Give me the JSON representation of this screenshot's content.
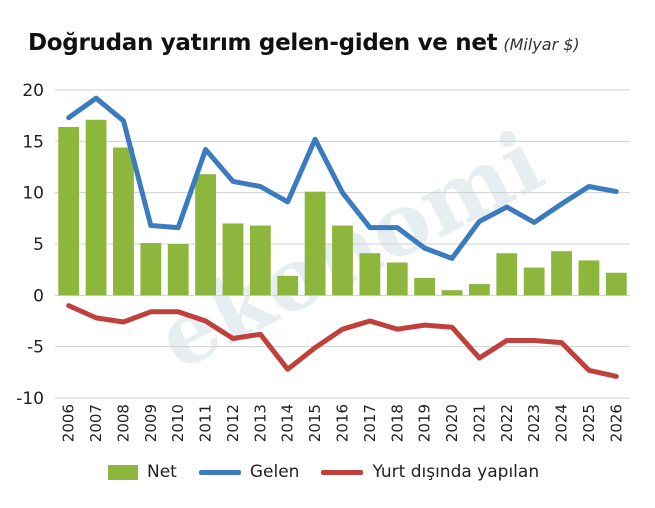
{
  "title": "Doğrudan yatırım gelen-giden ve net",
  "unit": "(Milyar $)",
  "watermark": "ekonomi",
  "colors": {
    "net": "#8db63d",
    "gelen": "#3b7bbf",
    "yurt": "#c0403c",
    "grid": "#d0d0d0"
  },
  "legend": {
    "net": "Net",
    "gelen": "Gelen",
    "yurt": "Yurt dışında yapılan"
  },
  "chart_data": {
    "type": "bar",
    "title": "Doğrudan yatırım gelen-giden ve net",
    "subtitle": "(Milyar $)",
    "categories": [
      "2006",
      "2007",
      "2008",
      "2009",
      "2010",
      "2011",
      "2012",
      "2013",
      "2014",
      "2015",
      "2016",
      "2017",
      "2018",
      "2019",
      "2020",
      "2021",
      "2022",
      "2023",
      "2024",
      "2025",
      "2026"
    ],
    "ylim": [
      -10,
      20
    ],
    "yticks": [
      20,
      15,
      10,
      5,
      0,
      -5,
      -10
    ],
    "grid": true,
    "legend_position": "bottom",
    "series": [
      {
        "name": "Net",
        "type": "bar",
        "values": [
          16.4,
          17.1,
          14.4,
          5.1,
          5.0,
          11.8,
          7.0,
          6.8,
          1.9,
          10.1,
          6.8,
          4.1,
          3.2,
          1.7,
          0.5,
          1.1,
          4.1,
          2.7,
          4.3,
          3.4,
          2.2
        ]
      },
      {
        "name": "Gelen",
        "type": "line",
        "values": [
          17.3,
          19.2,
          17.0,
          6.8,
          6.6,
          14.2,
          11.1,
          10.6,
          9.1,
          15.2,
          10.0,
          6.6,
          6.6,
          4.6,
          3.6,
          7.2,
          8.6,
          7.1,
          8.9,
          10.6,
          10.1
        ]
      },
      {
        "name": "Yurt dışında yapılan",
        "type": "line",
        "values": [
          -1.0,
          -2.2,
          -2.6,
          -1.6,
          -1.6,
          -2.5,
          -4.2,
          -3.8,
          -7.2,
          -5.1,
          -3.3,
          -2.5,
          -3.3,
          -2.9,
          -3.1,
          -6.1,
          -4.4,
          -4.4,
          -4.6,
          -7.3,
          -7.9
        ]
      }
    ]
  }
}
